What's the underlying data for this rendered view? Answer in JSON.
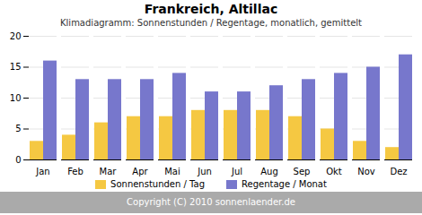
{
  "chart_data": {
    "type": "bar",
    "title": "Frankreich, Altillac",
    "subtitle": "Klimadiagramm: Sonnenstunden / Regentage, monatlich, gemittelt",
    "annotations": [
      "Copyright (C) 2010 sonnenlaender.de"
    ],
    "categories": [
      "Jan",
      "Feb",
      "Mar",
      "Apr",
      "Mai",
      "Jun",
      "Jul",
      "Aug",
      "Sep",
      "Okt",
      "Nov",
      "Dez"
    ],
    "series": [
      {
        "name": "Sonnenstunden / Tag",
        "color": "#F5C842",
        "values": [
          3,
          4,
          6,
          7,
          7,
          8,
          8,
          8,
          7,
          5,
          3,
          2
        ]
      },
      {
        "name": "Regentage / Monat",
        "color": "#7777CC",
        "values": [
          16,
          13,
          13,
          13,
          14,
          11,
          11,
          12,
          13,
          14,
          15,
          17
        ]
      }
    ],
    "ylim": [
      0,
      20
    ],
    "yticks": [
      0,
      5,
      10,
      15,
      20
    ],
    "grid": true,
    "legend": "bottom"
  }
}
